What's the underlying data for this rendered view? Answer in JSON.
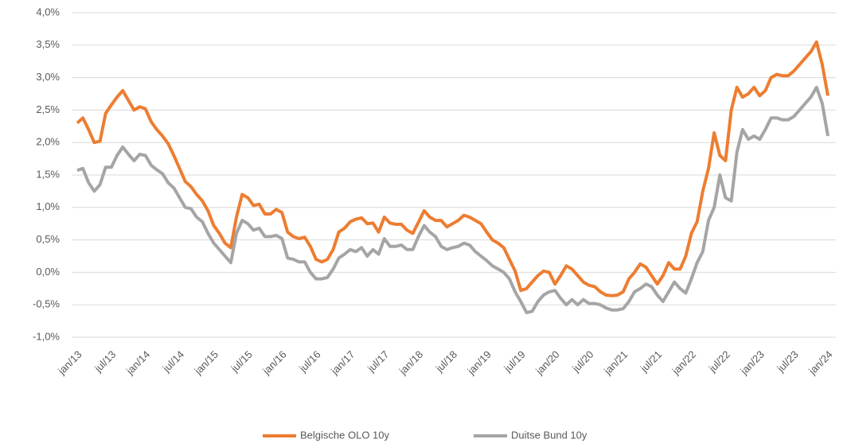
{
  "chart_data": {
    "type": "line",
    "categories": [
      "jan/13",
      null,
      null,
      null,
      null,
      null,
      "jul/13",
      null,
      null,
      null,
      null,
      null,
      "jan/14",
      null,
      null,
      null,
      null,
      null,
      "jul/14",
      null,
      null,
      null,
      null,
      null,
      "jan/15",
      null,
      null,
      null,
      null,
      null,
      "jul/15",
      null,
      null,
      null,
      null,
      null,
      "jan/16",
      null,
      null,
      null,
      null,
      null,
      "jul/16",
      null,
      null,
      null,
      null,
      null,
      "jan/17",
      null,
      null,
      null,
      null,
      null,
      "jul/17",
      null,
      null,
      null,
      null,
      null,
      "jan/18",
      null,
      null,
      null,
      null,
      null,
      "jul/18",
      null,
      null,
      null,
      null,
      null,
      "jan/19",
      null,
      null,
      null,
      null,
      null,
      "jul/19",
      null,
      null,
      null,
      null,
      null,
      "jan/20",
      null,
      null,
      null,
      null,
      null,
      "jul/20",
      null,
      null,
      null,
      null,
      null,
      "jan/21",
      null,
      null,
      null,
      null,
      null,
      "jul/21",
      null,
      null,
      null,
      null,
      null,
      "jan/22",
      null,
      null,
      null,
      null,
      null,
      "jul/22",
      null,
      null,
      null,
      null,
      null,
      "jan/23",
      null,
      null,
      null,
      null,
      null,
      "jul/23",
      null,
      null,
      null,
      null,
      null,
      "jan/24"
    ],
    "series": [
      {
        "name": "Belgische OLO 10y",
        "color": "#ed7d31",
        "values": [
          2.3,
          2.38,
          2.2,
          2.0,
          2.02,
          2.45,
          2.58,
          2.7,
          2.8,
          2.65,
          2.5,
          2.55,
          2.52,
          2.32,
          2.2,
          2.1,
          1.98,
          1.8,
          1.6,
          1.4,
          1.32,
          1.2,
          1.1,
          0.95,
          0.72,
          0.6,
          0.45,
          0.38,
          0.85,
          1.2,
          1.15,
          1.03,
          1.05,
          0.9,
          0.9,
          0.97,
          0.92,
          0.62,
          0.55,
          0.52,
          0.54,
          0.4,
          0.2,
          0.16,
          0.2,
          0.35,
          0.62,
          0.68,
          0.78,
          0.82,
          0.84,
          0.75,
          0.76,
          0.62,
          0.85,
          0.76,
          0.74,
          0.74,
          0.65,
          0.6,
          0.77,
          0.95,
          0.85,
          0.8,
          0.8,
          0.7,
          0.75,
          0.8,
          0.88,
          0.85,
          0.8,
          0.75,
          0.62,
          0.5,
          0.45,
          0.38,
          0.2,
          0.02,
          -0.28,
          -0.25,
          -0.15,
          -0.05,
          0.02,
          0.0,
          -0.18,
          -0.05,
          0.1,
          0.05,
          -0.05,
          -0.15,
          -0.2,
          -0.22,
          -0.3,
          -0.35,
          -0.36,
          -0.35,
          -0.3,
          -0.1,
          0.0,
          0.13,
          0.08,
          -0.05,
          -0.18,
          -0.05,
          0.15,
          0.05,
          0.05,
          0.25,
          0.6,
          0.78,
          1.25,
          1.6,
          2.15,
          1.8,
          1.72,
          2.5,
          2.85,
          2.7,
          2.75,
          2.85,
          2.72,
          2.8,
          3.0,
          3.05,
          3.03,
          3.03,
          3.1,
          3.2,
          3.3,
          3.4,
          3.55,
          3.2,
          2.72
        ]
      },
      {
        "name": "Duitse Bund 10y",
        "color": "#a5a5a5",
        "values": [
          1.57,
          1.6,
          1.38,
          1.25,
          1.35,
          1.62,
          1.62,
          1.8,
          1.93,
          1.82,
          1.72,
          1.82,
          1.8,
          1.65,
          1.58,
          1.52,
          1.38,
          1.3,
          1.15,
          1.0,
          0.98,
          0.85,
          0.78,
          0.6,
          0.45,
          0.35,
          0.25,
          0.15,
          0.6,
          0.8,
          0.75,
          0.65,
          0.68,
          0.55,
          0.55,
          0.57,
          0.52,
          0.22,
          0.2,
          0.16,
          0.16,
          0.0,
          -0.1,
          -0.1,
          -0.08,
          0.05,
          0.22,
          0.28,
          0.35,
          0.32,
          0.38,
          0.25,
          0.35,
          0.28,
          0.52,
          0.4,
          0.4,
          0.42,
          0.35,
          0.35,
          0.55,
          0.72,
          0.62,
          0.55,
          0.4,
          0.35,
          0.38,
          0.4,
          0.45,
          0.42,
          0.32,
          0.25,
          0.18,
          0.1,
          0.05,
          0.0,
          -0.1,
          -0.3,
          -0.45,
          -0.62,
          -0.6,
          -0.45,
          -0.35,
          -0.3,
          -0.28,
          -0.4,
          -0.5,
          -0.42,
          -0.5,
          -0.42,
          -0.48,
          -0.48,
          -0.5,
          -0.55,
          -0.58,
          -0.58,
          -0.56,
          -0.45,
          -0.3,
          -0.25,
          -0.18,
          -0.22,
          -0.35,
          -0.45,
          -0.3,
          -0.15,
          -0.25,
          -0.32,
          -0.1,
          0.15,
          0.32,
          0.8,
          1.0,
          1.5,
          1.15,
          1.1,
          1.85,
          2.2,
          2.05,
          2.1,
          2.05,
          2.2,
          2.38,
          2.38,
          2.35,
          2.35,
          2.4,
          2.5,
          2.6,
          2.7,
          2.85,
          2.6,
          2.1
        ]
      }
    ],
    "ylim": [
      -1.0,
      4.0
    ],
    "yticks": [
      {
        "value": -1.0,
        "label": "-1,0%"
      },
      {
        "value": -0.5,
        "label": "-0,5%"
      },
      {
        "value": 0.0,
        "label": "0,0%"
      },
      {
        "value": 0.5,
        "label": "0,5%"
      },
      {
        "value": 1.0,
        "label": "1,0%"
      },
      {
        "value": 1.5,
        "label": "1,5%"
      },
      {
        "value": 2.0,
        "label": "2,0%"
      },
      {
        "value": 2.5,
        "label": "2,5%"
      },
      {
        "value": 3.0,
        "label": "3,0%"
      },
      {
        "value": 3.5,
        "label": "3,5%"
      },
      {
        "value": 4.0,
        "label": "4,0%"
      }
    ],
    "grid": true,
    "legend": "bottom"
  }
}
